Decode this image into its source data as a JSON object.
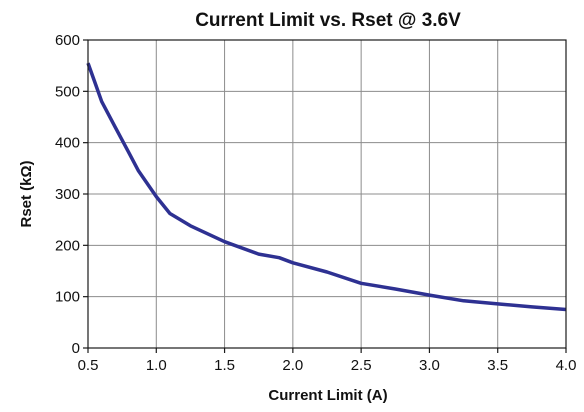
{
  "chart_data": {
    "type": "line",
    "title": "Current Limit vs. Rset @ 3.6V",
    "xlabel": "Current Limit (A)",
    "ylabel": "Rset (kΩ)",
    "xlim": [
      0.5,
      4.0
    ],
    "ylim": [
      0,
      600
    ],
    "x_ticks": [
      "0.5",
      "1.0",
      "1.5",
      "2.0",
      "2.5",
      "3.0",
      "3.5",
      "4.0"
    ],
    "y_ticks": [
      "0",
      "100",
      "200",
      "300",
      "400",
      "500",
      "600"
    ],
    "grid": true,
    "legend": "none",
    "series": [
      {
        "color": "#2e3192",
        "x": [
          0.5,
          0.55,
          0.6,
          0.7,
          0.8,
          0.87,
          1.0,
          1.1,
          1.25,
          1.5,
          1.75,
          1.9,
          2.0,
          2.25,
          2.5,
          2.75,
          3.0,
          3.25,
          3.5,
          3.75,
          4.0
        ],
        "y": [
          555,
          518,
          480,
          430,
          380,
          345,
          295,
          262,
          238,
          207,
          183,
          176,
          166,
          148,
          126,
          115,
          103,
          92,
          86,
          80,
          75
        ]
      }
    ]
  }
}
